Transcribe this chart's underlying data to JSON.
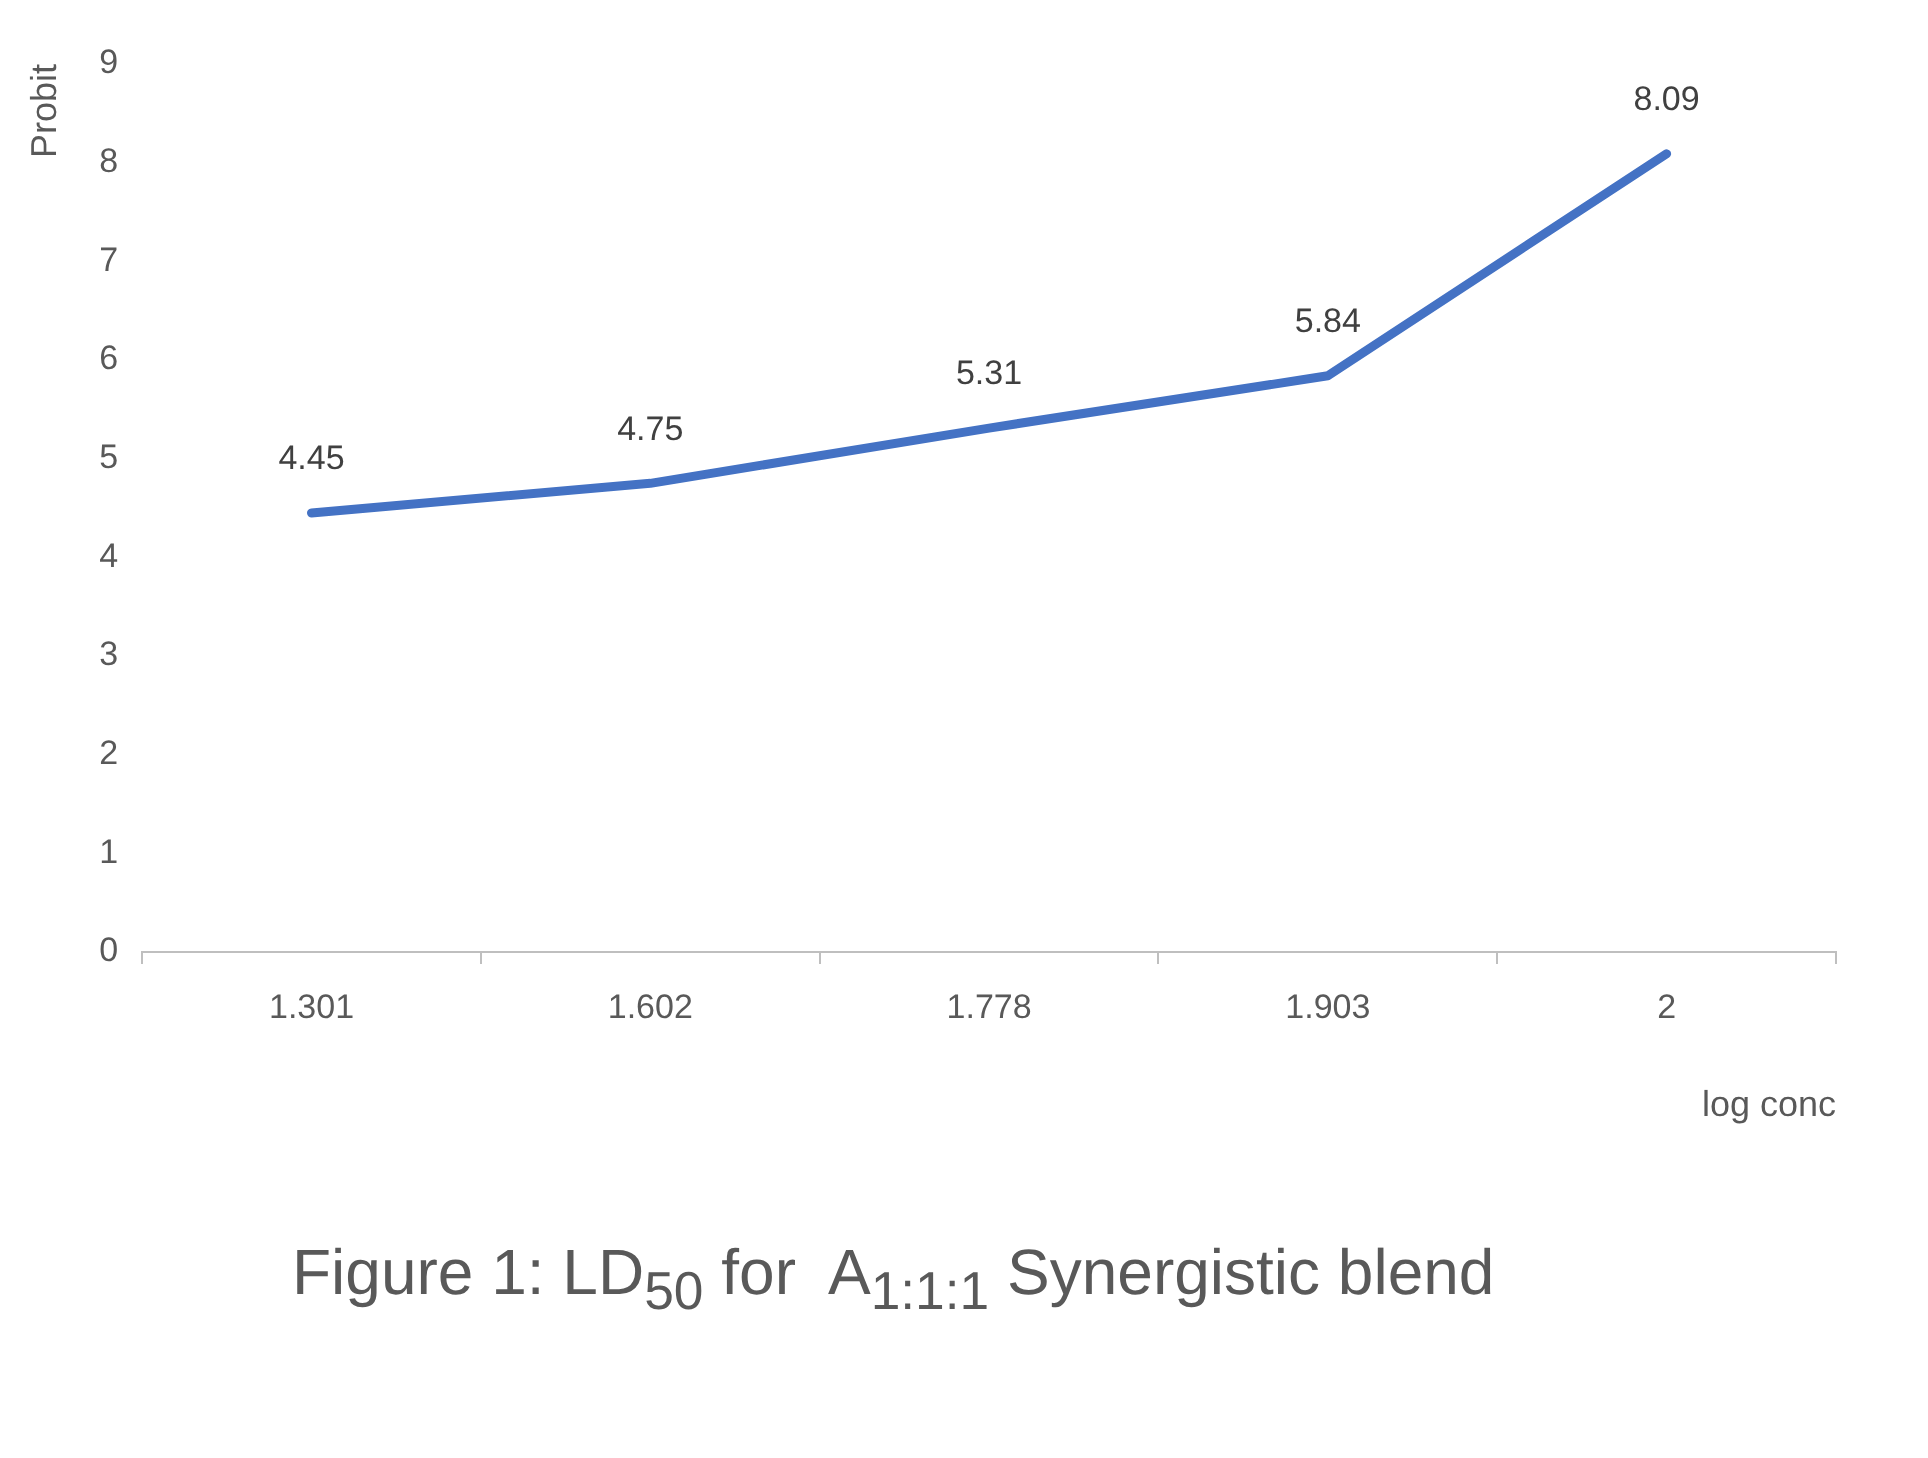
{
  "chart_data": {
    "type": "line",
    "xlabel": "log conc",
    "ylabel": "Probit",
    "categories": [
      "1.301",
      "1.602",
      "1.778",
      "1.903",
      "2"
    ],
    "series": [
      {
        "color": "#4472c4",
        "values": [
          4.45,
          4.75,
          5.31,
          5.84,
          8.09
        ]
      }
    ],
    "ylim": [
      0,
      9
    ],
    "yticks": [
      0,
      1,
      2,
      3,
      4,
      5,
      6,
      7,
      8,
      9
    ],
    "grid": false,
    "legend": false,
    "marker": "none",
    "line_style": "solid",
    "data_labels": true,
    "annotations": [
      "Figure 1: LD$_{50}$ for  A$_{1:1:1}$ Synergistic blend"
    ]
  }
}
